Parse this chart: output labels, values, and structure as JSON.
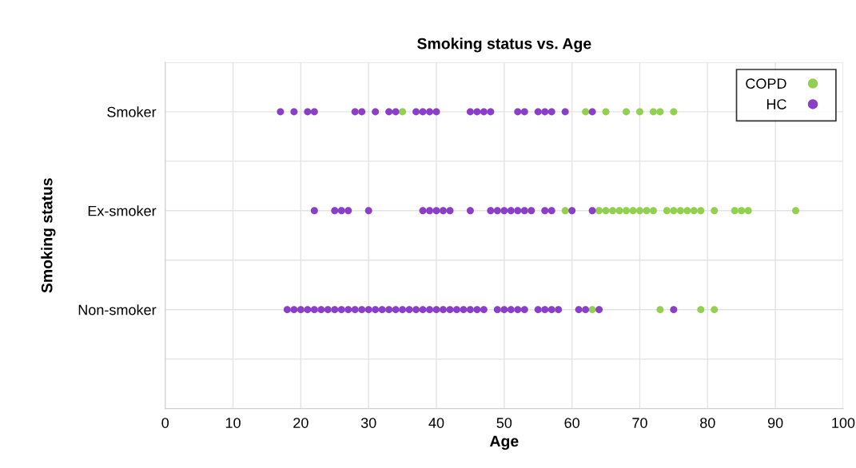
{
  "chart_data": {
    "type": "scatter",
    "orientation": "horizontal",
    "title": "Smoking status vs. Age",
    "xlabel": "Age",
    "ylabel": "Smoking status",
    "xlim": [
      0,
      100
    ],
    "xticks": [
      0,
      10,
      20,
      30,
      40,
      50,
      60,
      70,
      80,
      90,
      100
    ],
    "categories": [
      "Smoker",
      "Ex-smoker",
      "Non-smoker",
      null
    ],
    "grid": true,
    "legend": "top right",
    "marker": "circle",
    "series": [
      {
        "name": "COPD",
        "color": "#92d050",
        "values": [
          35,
          62,
          65,
          68,
          70,
          72,
          73,
          75,
          59,
          64,
          65,
          66,
          67,
          68,
          69,
          70,
          71,
          72,
          74,
          75,
          76,
          77,
          78,
          79,
          81,
          84,
          85,
          86,
          93,
          63,
          73,
          79,
          81
        ],
        "x": [
          "Smoker",
          "Smoker",
          "Smoker",
          "Smoker",
          "Smoker",
          "Smoker",
          "Smoker",
          "Smoker",
          "Ex-smoker",
          "Ex-smoker",
          "Ex-smoker",
          "Ex-smoker",
          "Ex-smoker",
          "Ex-smoker",
          "Ex-smoker",
          "Ex-smoker",
          "Ex-smoker",
          "Ex-smoker",
          "Ex-smoker",
          "Ex-smoker",
          "Ex-smoker",
          "Ex-smoker",
          "Ex-smoker",
          "Ex-smoker",
          "Ex-smoker",
          "Ex-smoker",
          "Ex-smoker",
          "Ex-smoker",
          "Ex-smoker",
          "Non-smoker",
          "Non-smoker",
          "Non-smoker",
          "Non-smoker"
        ]
      },
      {
        "name": "HC",
        "color": "#8b3fc8",
        "values": [
          17,
          19,
          21,
          22,
          28,
          29,
          31,
          33,
          34,
          37,
          38,
          39,
          40,
          45,
          46,
          47,
          48,
          52,
          53,
          55,
          56,
          57,
          59,
          63,
          22,
          25,
          26,
          27,
          30,
          38,
          39,
          40,
          41,
          42,
          45,
          48,
          49,
          50,
          51,
          52,
          53,
          54,
          56,
          57,
          60,
          63,
          18,
          19,
          20,
          21,
          22,
          23,
          24,
          25,
          26,
          27,
          28,
          29,
          30,
          31,
          32,
          33,
          34,
          35,
          36,
          37,
          38,
          39,
          40,
          41,
          42,
          43,
          44,
          45,
          46,
          47,
          49,
          50,
          51,
          52,
          53,
          55,
          56,
          57,
          58,
          61,
          62,
          64,
          75
        ],
        "x": [
          "Smoker",
          "Smoker",
          "Smoker",
          "Smoker",
          "Smoker",
          "Smoker",
          "Smoker",
          "Smoker",
          "Smoker",
          "Smoker",
          "Smoker",
          "Smoker",
          "Smoker",
          "Smoker",
          "Smoker",
          "Smoker",
          "Smoker",
          "Smoker",
          "Smoker",
          "Smoker",
          "Smoker",
          "Smoker",
          "Smoker",
          "Smoker",
          "Ex-smoker",
          "Ex-smoker",
          "Ex-smoker",
          "Ex-smoker",
          "Ex-smoker",
          "Ex-smoker",
          "Ex-smoker",
          "Ex-smoker",
          "Ex-smoker",
          "Ex-smoker",
          "Ex-smoker",
          "Ex-smoker",
          "Ex-smoker",
          "Ex-smoker",
          "Ex-smoker",
          "Ex-smoker",
          "Ex-smoker",
          "Ex-smoker",
          "Ex-smoker",
          "Ex-smoker",
          "Ex-smoker",
          "Ex-smoker",
          "Non-smoker",
          "Non-smoker",
          "Non-smoker",
          "Non-smoker",
          "Non-smoker",
          "Non-smoker",
          "Non-smoker",
          "Non-smoker",
          "Non-smoker",
          "Non-smoker",
          "Non-smoker",
          "Non-smoker",
          "Non-smoker",
          "Non-smoker",
          "Non-smoker",
          "Non-smoker",
          "Non-smoker",
          "Non-smoker",
          "Non-smoker",
          "Non-smoker",
          "Non-smoker",
          "Non-smoker",
          "Non-smoker",
          "Non-smoker",
          "Non-smoker",
          "Non-smoker",
          "Non-smoker",
          "Non-smoker",
          "Non-smoker",
          "Non-smoker",
          "Non-smoker",
          "Non-smoker",
          "Non-smoker",
          "Non-smoker",
          "Non-smoker",
          "Non-smoker",
          "Non-smoker",
          "Non-smoker",
          "Non-smoker",
          "Non-smoker",
          "Non-smoker",
          "Non-smoker",
          "Non-smoker"
        ]
      }
    ]
  }
}
